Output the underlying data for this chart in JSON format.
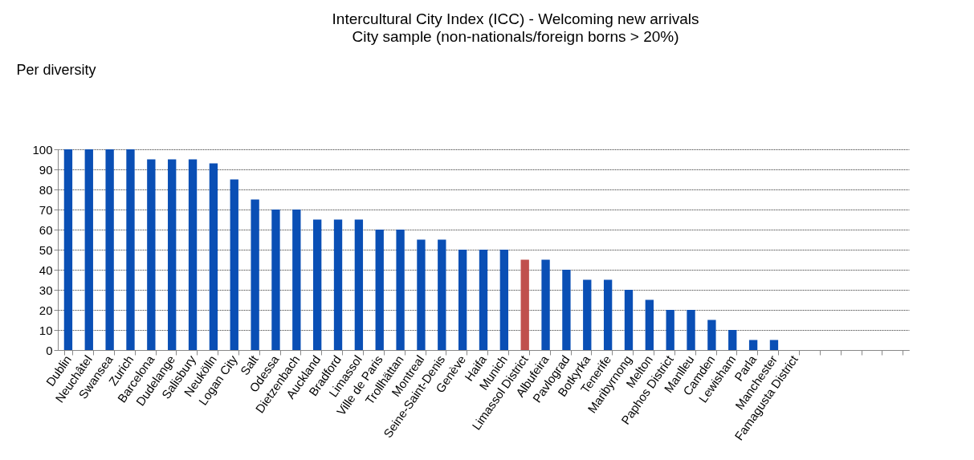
{
  "chart_data": {
    "type": "bar",
    "title": "Intercultural City Index (ICC) - Welcoming new arrivals",
    "subtitle": "City sample (non-nationals/foreign borns > 20%)",
    "ylabel": "Per diversity",
    "categories": [
      "Dublin",
      "Neuchâtel",
      "Swansea",
      "Zurich",
      "Barcelona",
      "Dudelange",
      "Salisbury",
      "Neukölln",
      "Logan City",
      "Salt",
      "Odessa",
      "Dietzenbach",
      "Auckland",
      "Bradford",
      "Limassol",
      "Ville de Paris",
      "Trollhättan",
      "Montreal",
      "Seine-Saint-Denis",
      "Genève",
      "Haifa",
      "Munich",
      "Limassol District",
      "Albufeira",
      "Pavlograd",
      "Botkyrka",
      "Tenerife",
      "Maribyrnong",
      "Melton",
      "Paphos District",
      "Manlleu",
      "Camden",
      "Lewisham",
      "Parla",
      "Manchester",
      "Famagusta District",
      null,
      null,
      null,
      null,
      null
    ],
    "values": [
      100,
      100,
      100,
      100,
      95,
      95,
      95,
      93,
      85,
      75,
      70,
      70,
      65,
      65,
      65,
      60,
      60,
      55,
      55,
      50,
      50,
      50,
      45,
      45,
      40,
      35,
      35,
      30,
      25,
      20,
      20,
      15,
      10,
      5,
      5,
      0,
      null,
      null,
      null,
      null,
      null
    ],
    "colors": [
      "#0a4fb5",
      "#0a4fb5",
      "#0a4fb5",
      "#0a4fb5",
      "#0a4fb5",
      "#0a4fb5",
      "#0a4fb5",
      "#0a4fb5",
      "#0a4fb5",
      "#0a4fb5",
      "#0a4fb5",
      "#0a4fb5",
      "#0a4fb5",
      "#0a4fb5",
      "#0a4fb5",
      "#0a4fb5",
      "#0a4fb5",
      "#0a4fb5",
      "#0a4fb5",
      "#0a4fb5",
      "#0a4fb5",
      "#0a4fb5",
      "#c0504d",
      "#0a4fb5",
      "#0a4fb5",
      "#0a4fb5",
      "#0a4fb5",
      "#0a4fb5",
      "#0a4fb5",
      "#0a4fb5",
      "#0a4fb5",
      "#0a4fb5",
      "#0a4fb5",
      "#0a4fb5",
      "#0a4fb5",
      "#0a4fb5",
      "#0a4fb5",
      "#0a4fb5",
      "#0a4fb5",
      "#0a4fb5",
      "#0a4fb5"
    ],
    "ylim": [
      0,
      100
    ],
    "yticks": [
      0,
      10,
      20,
      30,
      40,
      50,
      60,
      70,
      80,
      90,
      100
    ],
    "grid": "y",
    "legend": false
  }
}
